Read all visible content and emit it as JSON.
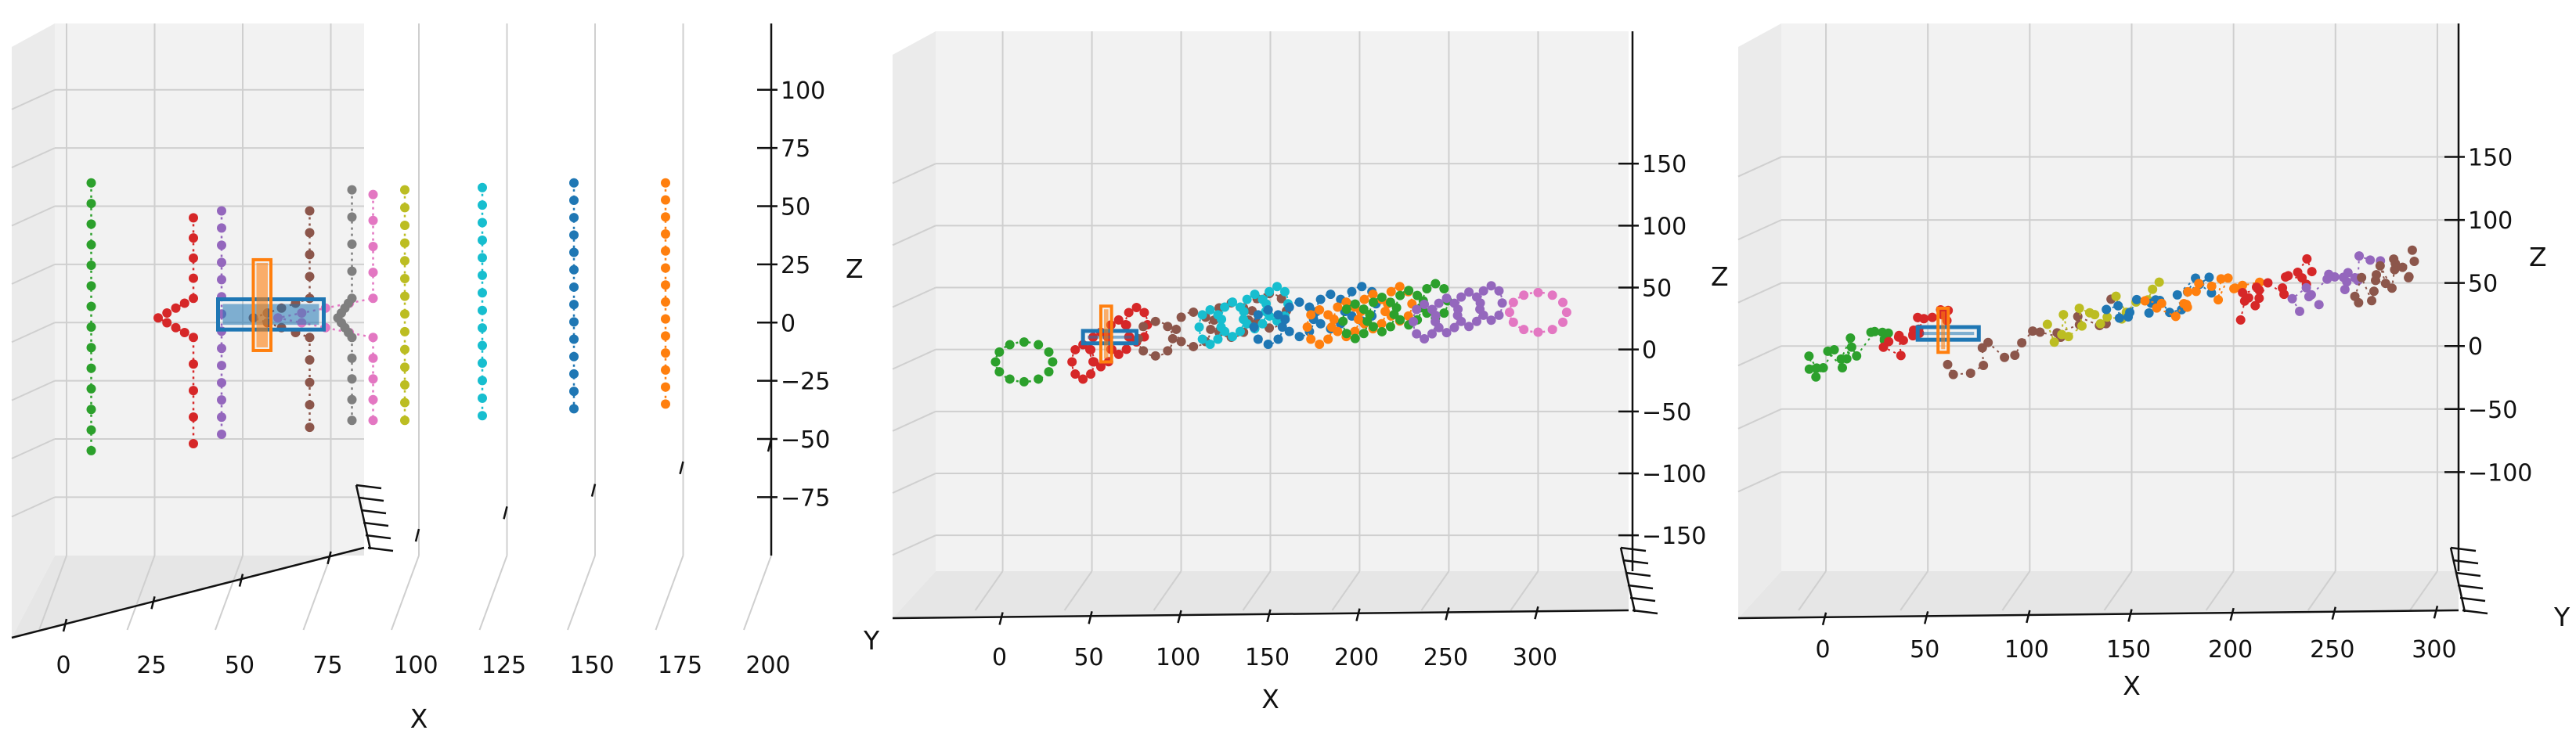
{
  "chart_data": [
    {
      "type": "scatter3d",
      "view": "front (elevation ~0°)",
      "xlabel": "X",
      "ylabel": "",
      "zlabel": "Z",
      "xlim": [
        0,
        200
      ],
      "zlim": [
        -90,
        110
      ],
      "xticks": [
        "0",
        "25",
        "50",
        "75",
        "100",
        "125",
        "150",
        "175",
        "200"
      ],
      "zticks": [
        "100",
        "75",
        "50",
        "25",
        "0",
        "−25",
        "−50",
        "−75"
      ],
      "grid": true,
      "series": [
        {
          "color": "#2ca02c",
          "kind": "vertical-line",
          "x": 7,
          "z": [
            60,
            -55
          ]
        },
        {
          "color": "#d62728",
          "kind": "wing-outline",
          "x_range": [
            26,
            36
          ],
          "z": [
            45,
            -52
          ]
        },
        {
          "color": "#9467bd",
          "kind": "vertical-line",
          "x": 44,
          "z": [
            48,
            -48
          ]
        },
        {
          "color": "#8c564b",
          "kind": "wing-outline",
          "x_range": [
            53,
            69
          ],
          "z": [
            48,
            -45
          ]
        },
        {
          "color": "#e377c2",
          "kind": "wing-outline",
          "x_range": [
            60,
            87
          ],
          "z": [
            55,
            -42
          ]
        },
        {
          "color": "#7f7f7f",
          "kind": "wing-outline",
          "x_range": [
            77,
            81
          ],
          "z": [
            57,
            -42
          ]
        },
        {
          "color": "#bcbd22",
          "kind": "vertical-line",
          "x": 96,
          "z": [
            57,
            -42
          ]
        },
        {
          "color": "#17becf",
          "kind": "vertical-line",
          "x": 118,
          "z": [
            58,
            -40
          ]
        },
        {
          "color": "#1f77b4",
          "kind": "vertical-line",
          "x": 144,
          "z": [
            60,
            -37
          ]
        },
        {
          "color": "#ff7f0e",
          "kind": "vertical-line",
          "x": 170,
          "z": [
            60,
            -35
          ]
        }
      ],
      "body": {
        "color": "#1f77b4",
        "kind": "box",
        "x": [
          43,
          73
        ],
        "z": [
          -3,
          10
        ]
      },
      "wing": {
        "color": "#ff7f0e",
        "kind": "box",
        "x": [
          53,
          58
        ],
        "z": [
          -12,
          27
        ]
      }
    },
    {
      "type": "scatter3d",
      "view": "oblique (elevation ~5°)",
      "xlabel": "X",
      "ylabel": "Y",
      "zlabel": "Z",
      "xlim": [
        -20,
        320
      ],
      "zlim": [
        -160,
        200
      ],
      "xticks": [
        "0",
        "50",
        "100",
        "150",
        "200",
        "250",
        "300"
      ],
      "zticks": [
        "150",
        "100",
        "50",
        "0",
        "−50",
        "−100",
        "−150"
      ],
      "grid": true,
      "series": [
        {
          "color": "#2ca02c",
          "kind": "ring",
          "cx": 12,
          "cz": -10,
          "r": 16
        },
        {
          "color": "#e377c2",
          "kind": "ring",
          "cx": 300,
          "cz": 30,
          "r": 16
        },
        {
          "color": "#d62728",
          "kind": "ring-chain",
          "x": [
            40,
            80
          ],
          "z": [
            -15,
            25
          ]
        },
        {
          "color": "#8c564b",
          "kind": "ring-chain",
          "x": [
            75,
            160
          ],
          "z": [
            5,
            35
          ]
        },
        {
          "color": "#17becf",
          "kind": "ring-chain",
          "x": [
            110,
            160
          ],
          "z": [
            15,
            40
          ]
        },
        {
          "color": "#1f77b4",
          "kind": "ring-chain",
          "x": [
            140,
            210
          ],
          "z": [
            15,
            40
          ]
        },
        {
          "color": "#ff7f0e",
          "kind": "ring-chain",
          "x": [
            170,
            230
          ],
          "z": [
            15,
            40
          ]
        },
        {
          "color": "#2ca02c",
          "kind": "ring-chain",
          "x": [
            190,
            250
          ],
          "z": [
            20,
            42
          ]
        },
        {
          "color": "#9467bd",
          "kind": "ring-chain",
          "x": [
            230,
            280
          ],
          "z": [
            20,
            40
          ]
        }
      ],
      "body": {
        "color": "#1f77b4",
        "kind": "box",
        "x": [
          45,
          75
        ],
        "z": [
          5,
          15
        ]
      },
      "wing": {
        "color": "#ff7f0e",
        "kind": "box",
        "x": [
          55,
          61
        ],
        "z": [
          -10,
          35
        ]
      }
    },
    {
      "type": "scatter3d",
      "view": "oblique (elevation ~10°)",
      "xlabel": "X",
      "ylabel": "Y",
      "zlabel": "Z",
      "xlim": [
        -20,
        320
      ],
      "zlim": [
        -160,
        200
      ],
      "xticks": [
        "0",
        "50",
        "100",
        "150",
        "200",
        "250",
        "300"
      ],
      "zticks": [
        "150",
        "100",
        "50",
        "0",
        "−50",
        "−100"
      ],
      "grid": true,
      "series": [
        {
          "color": "#2ca02c",
          "kind": "cluster",
          "x": [
            -10,
            30
          ],
          "z": [
            -20,
            10
          ]
        },
        {
          "color": "#d62728",
          "kind": "cluster",
          "x": [
            30,
            60
          ],
          "z": [
            0,
            25
          ]
        },
        {
          "color": "#8c564b",
          "kind": "cluster",
          "x": [
            60,
            140
          ],
          "z": [
            -20,
            30
          ]
        },
        {
          "color": "#bcbd22",
          "kind": "cluster",
          "x": [
            110,
            160
          ],
          "z": [
            10,
            40
          ]
        },
        {
          "color": "#1f77b4",
          "kind": "cluster",
          "x": [
            140,
            190
          ],
          "z": [
            20,
            50
          ]
        },
        {
          "color": "#ff7f0e",
          "kind": "cluster",
          "x": [
            160,
            210
          ],
          "z": [
            25,
            55
          ]
        },
        {
          "color": "#d62728",
          "kind": "cluster",
          "x": [
            200,
            240
          ],
          "z": [
            30,
            60
          ]
        },
        {
          "color": "#9467bd",
          "kind": "cluster",
          "x": [
            230,
            270
          ],
          "z": [
            35,
            65
          ]
        },
        {
          "color": "#8c564b",
          "kind": "cluster",
          "x": [
            260,
            290
          ],
          "z": [
            40,
            70
          ]
        }
      ],
      "body": {
        "color": "#1f77b4",
        "kind": "box",
        "x": [
          45,
          75
        ],
        "z": [
          5,
          15
        ]
      },
      "wing": {
        "color": "#ff7f0e",
        "kind": "box",
        "x": [
          55,
          60
        ],
        "z": [
          -5,
          30
        ]
      }
    }
  ]
}
